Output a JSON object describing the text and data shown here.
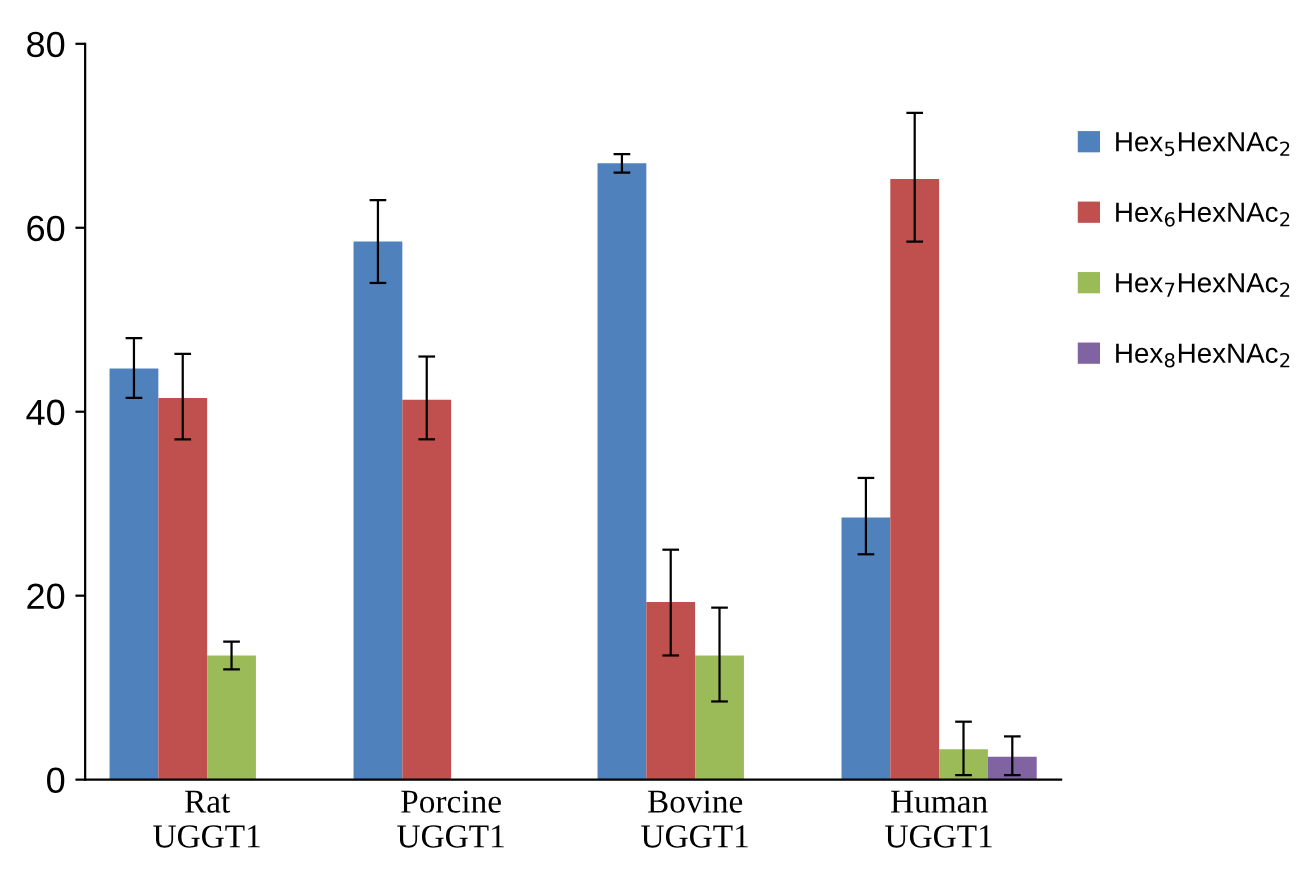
{
  "chart_data": {
    "type": "bar",
    "categories": [
      "Rat\nUGGT1",
      "Porcine\nUGGT1",
      "Bovine\nUGGT1",
      "Human\nUGGT1"
    ],
    "series": [
      {
        "name": "Hex$_{5}$HexNAc$_{2}$",
        "color": "#4f81bd",
        "values": [
          44.7,
          58.5,
          67,
          28.5
        ],
        "errors": [
          [
            41.5,
            48
          ],
          [
            54,
            63
          ],
          [
            66,
            68
          ],
          [
            24.5,
            32.8
          ]
        ]
      },
      {
        "name": "Hex$_{6}$HexNAc$_{2}$",
        "color": "#c0504d",
        "values": [
          41.5,
          41.3,
          19.3,
          65.3
        ],
        "errors": [
          [
            37,
            46.3
          ],
          [
            37,
            46
          ],
          [
            13.5,
            25
          ],
          [
            58.5,
            72.5
          ]
        ]
      },
      {
        "name": "Hex$_{7}$HexNAc$_{2}$",
        "color": "#9bbb59",
        "values": [
          13.5,
          null,
          13.5,
          3.3
        ],
        "errors": [
          [
            12,
            15
          ],
          null,
          [
            8.5,
            18.7
          ],
          [
            0.5,
            6.3
          ]
        ]
      },
      {
        "name": "Hex$_{8}$HexNAc$_{2}$",
        "color": "#8064a2",
        "values": [
          null,
          null,
          null,
          2.5
        ],
        "errors": [
          null,
          null,
          null,
          [
            0.5,
            4.7
          ]
        ]
      }
    ],
    "ylim": [
      0,
      80
    ],
    "yticks": [
      0,
      20,
      40,
      60,
      80
    ],
    "grid": false,
    "legend": "right"
  }
}
